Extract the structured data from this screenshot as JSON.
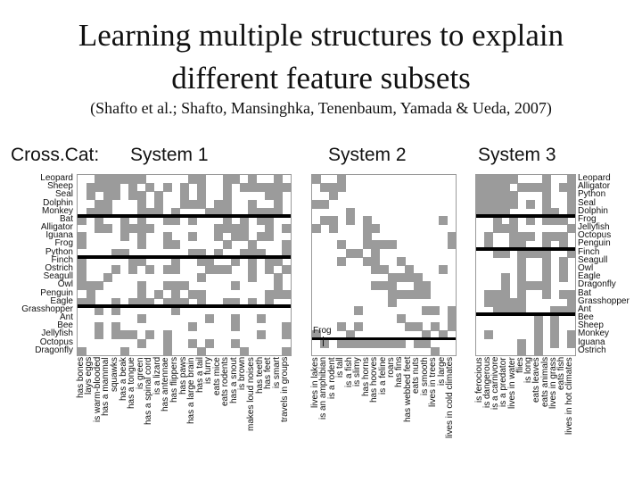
{
  "title": {
    "line1": "Learning multiple structures to explain",
    "line2": "different feature subsets"
  },
  "citation": "(Shafto et al.; Shafto, Mansinghka, Tenenbaum, Yamada & Ueda, 2007)",
  "labels": {
    "crosscat": "Cross.Cat:",
    "system1": "System 1",
    "system2": "System 2",
    "system3": "System 3"
  },
  "system1": {
    "animals": [
      "Leopard",
      "Sheep",
      "Seal",
      "Dolphin",
      "Monkey",
      "Bat",
      "Alligator",
      "Iguana",
      "Frog",
      "Python",
      "Finch",
      "Ostrich",
      "Seagull",
      "Owl",
      "Penguin",
      "Eagle",
      "Grasshopper",
      "Ant",
      "Bee",
      "Jellyfish",
      "Octopus",
      "Dragonfly"
    ],
    "features": [
      "has bones",
      "lays eggs",
      "is warm-blooded",
      "has a mammal",
      "squawks",
      "has a beak",
      "has a tongue",
      "is green",
      "has a spinal cord",
      "is a lizard",
      "has antennae",
      "has flippers",
      "has paws",
      "has a large brain",
      "has a tail",
      "is furry",
      "eats mice",
      "eats rodents",
      "has a snout",
      "is brown",
      "makes loud noises",
      "has teeth",
      "has feet",
      "is smart",
      "travels in groups"
    ],
    "cluster_sizes": [
      5,
      5,
      6,
      6
    ]
  },
  "system2": {
    "features": [
      "lives in lakes",
      "is an amphibian",
      "is a rodent",
      "is tall",
      "is a fish",
      "is slimy",
      "has horns",
      "has hooves",
      "is a feline",
      "roars",
      "has fins",
      "has webbed feet",
      "eats nuts",
      "is smooth",
      "lives in trees",
      "is large",
      "lives in cold climates"
    ],
    "highlighted_animal": "Frog"
  },
  "system3": {
    "animals": [
      "Leopard",
      "Alligator",
      "Python",
      "Seal",
      "Dolphin",
      "Frog",
      "Jellyfish",
      "Octopus",
      "Penguin",
      "Finch",
      "Seagull",
      "Owl",
      "Eagle",
      "Dragonfly",
      "Bat",
      "Grasshopper",
      "Ant",
      "Bee",
      "Sheep",
      "Monkey",
      "Iguana",
      "Ostrich"
    ],
    "features": [
      "is ferocious",
      "is dangerous",
      "is a carnivore",
      "is a predator",
      "lives in water",
      "flies",
      "is long",
      "eats leaves",
      "eats animals",
      "lives in grass",
      "eats fish",
      "lives in hot climates"
    ],
    "cluster_sizes": [
      5,
      4,
      8,
      5
    ]
  }
}
